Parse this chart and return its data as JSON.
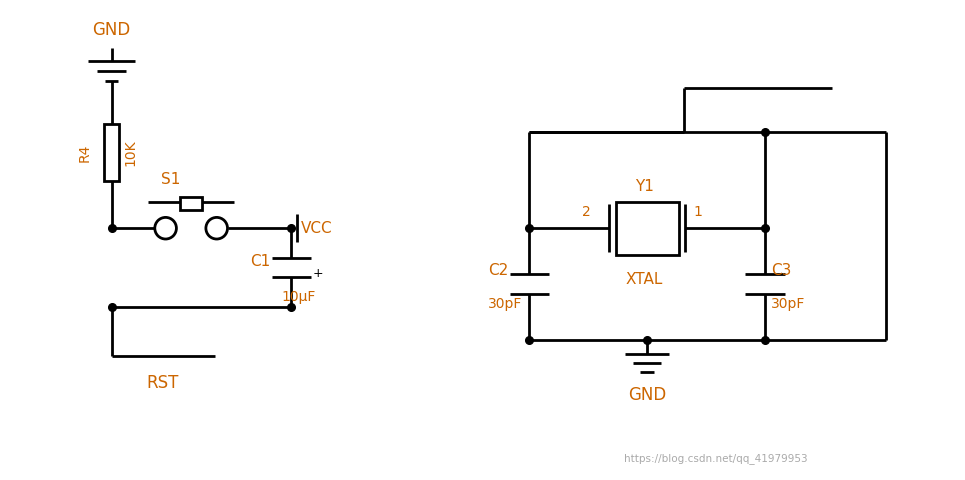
{
  "line_color": "#000000",
  "label_color": "#cc6600",
  "bg_color": "#ffffff",
  "lw": 2.0,
  "labels": {
    "GND_left": "GND",
    "R4": "R4",
    "10K": "10K",
    "S1": "S1",
    "C1": "C1",
    "10uF": "10μF",
    "VCC": "VCC",
    "RST": "RST",
    "Y1": "Y1",
    "pin2": "2",
    "pin1": "1",
    "XTAL": "XTAL",
    "C2": "C2",
    "30pF_left": "30pF",
    "C3": "C3",
    "30pF_right": "30pF",
    "GND_right": "GND",
    "watermark": "https://blog.csdn.net/qq_41979953"
  }
}
